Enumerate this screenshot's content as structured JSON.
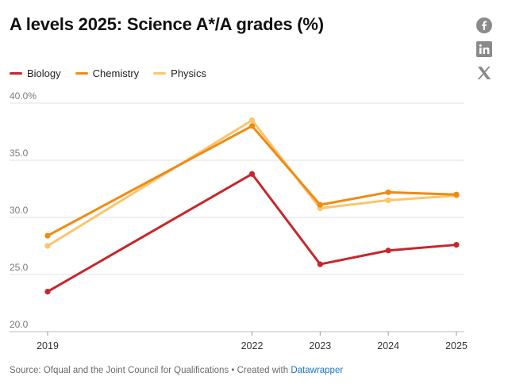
{
  "title": "A levels 2025: Science A*/A grades (%)",
  "share_icons": [
    "facebook-icon",
    "linkedin-icon",
    "x-icon"
  ],
  "footer": {
    "source": "Source: Ofqual and the Joint Council for Qualifications",
    "created": "• Created with",
    "tool": "Datawrapper"
  },
  "colors": {
    "Biology": "#c8262a",
    "Chemistry": "#f08a12",
    "Physics": "#fbc56c"
  },
  "chart_data": {
    "type": "line",
    "title": "A levels 2025: Science A*/A grades (%)",
    "x": [
      2019,
      2022,
      2023,
      2024,
      2025
    ],
    "y_ticks": [
      "40.0%",
      "35.0",
      "30.0",
      "25.0",
      "20.0"
    ],
    "y_tick_values": [
      40,
      35,
      30,
      25,
      20
    ],
    "ylim": [
      20,
      40
    ],
    "grid": true,
    "legend_position": "top-left",
    "series": [
      {
        "name": "Biology",
        "values": [
          23.5,
          33.8,
          25.9,
          27.1,
          27.6
        ]
      },
      {
        "name": "Chemistry",
        "values": [
          28.4,
          38.0,
          31.1,
          32.2,
          32.0
        ]
      },
      {
        "name": "Physics",
        "values": [
          27.5,
          38.5,
          30.8,
          31.5,
          31.9
        ]
      }
    ]
  }
}
